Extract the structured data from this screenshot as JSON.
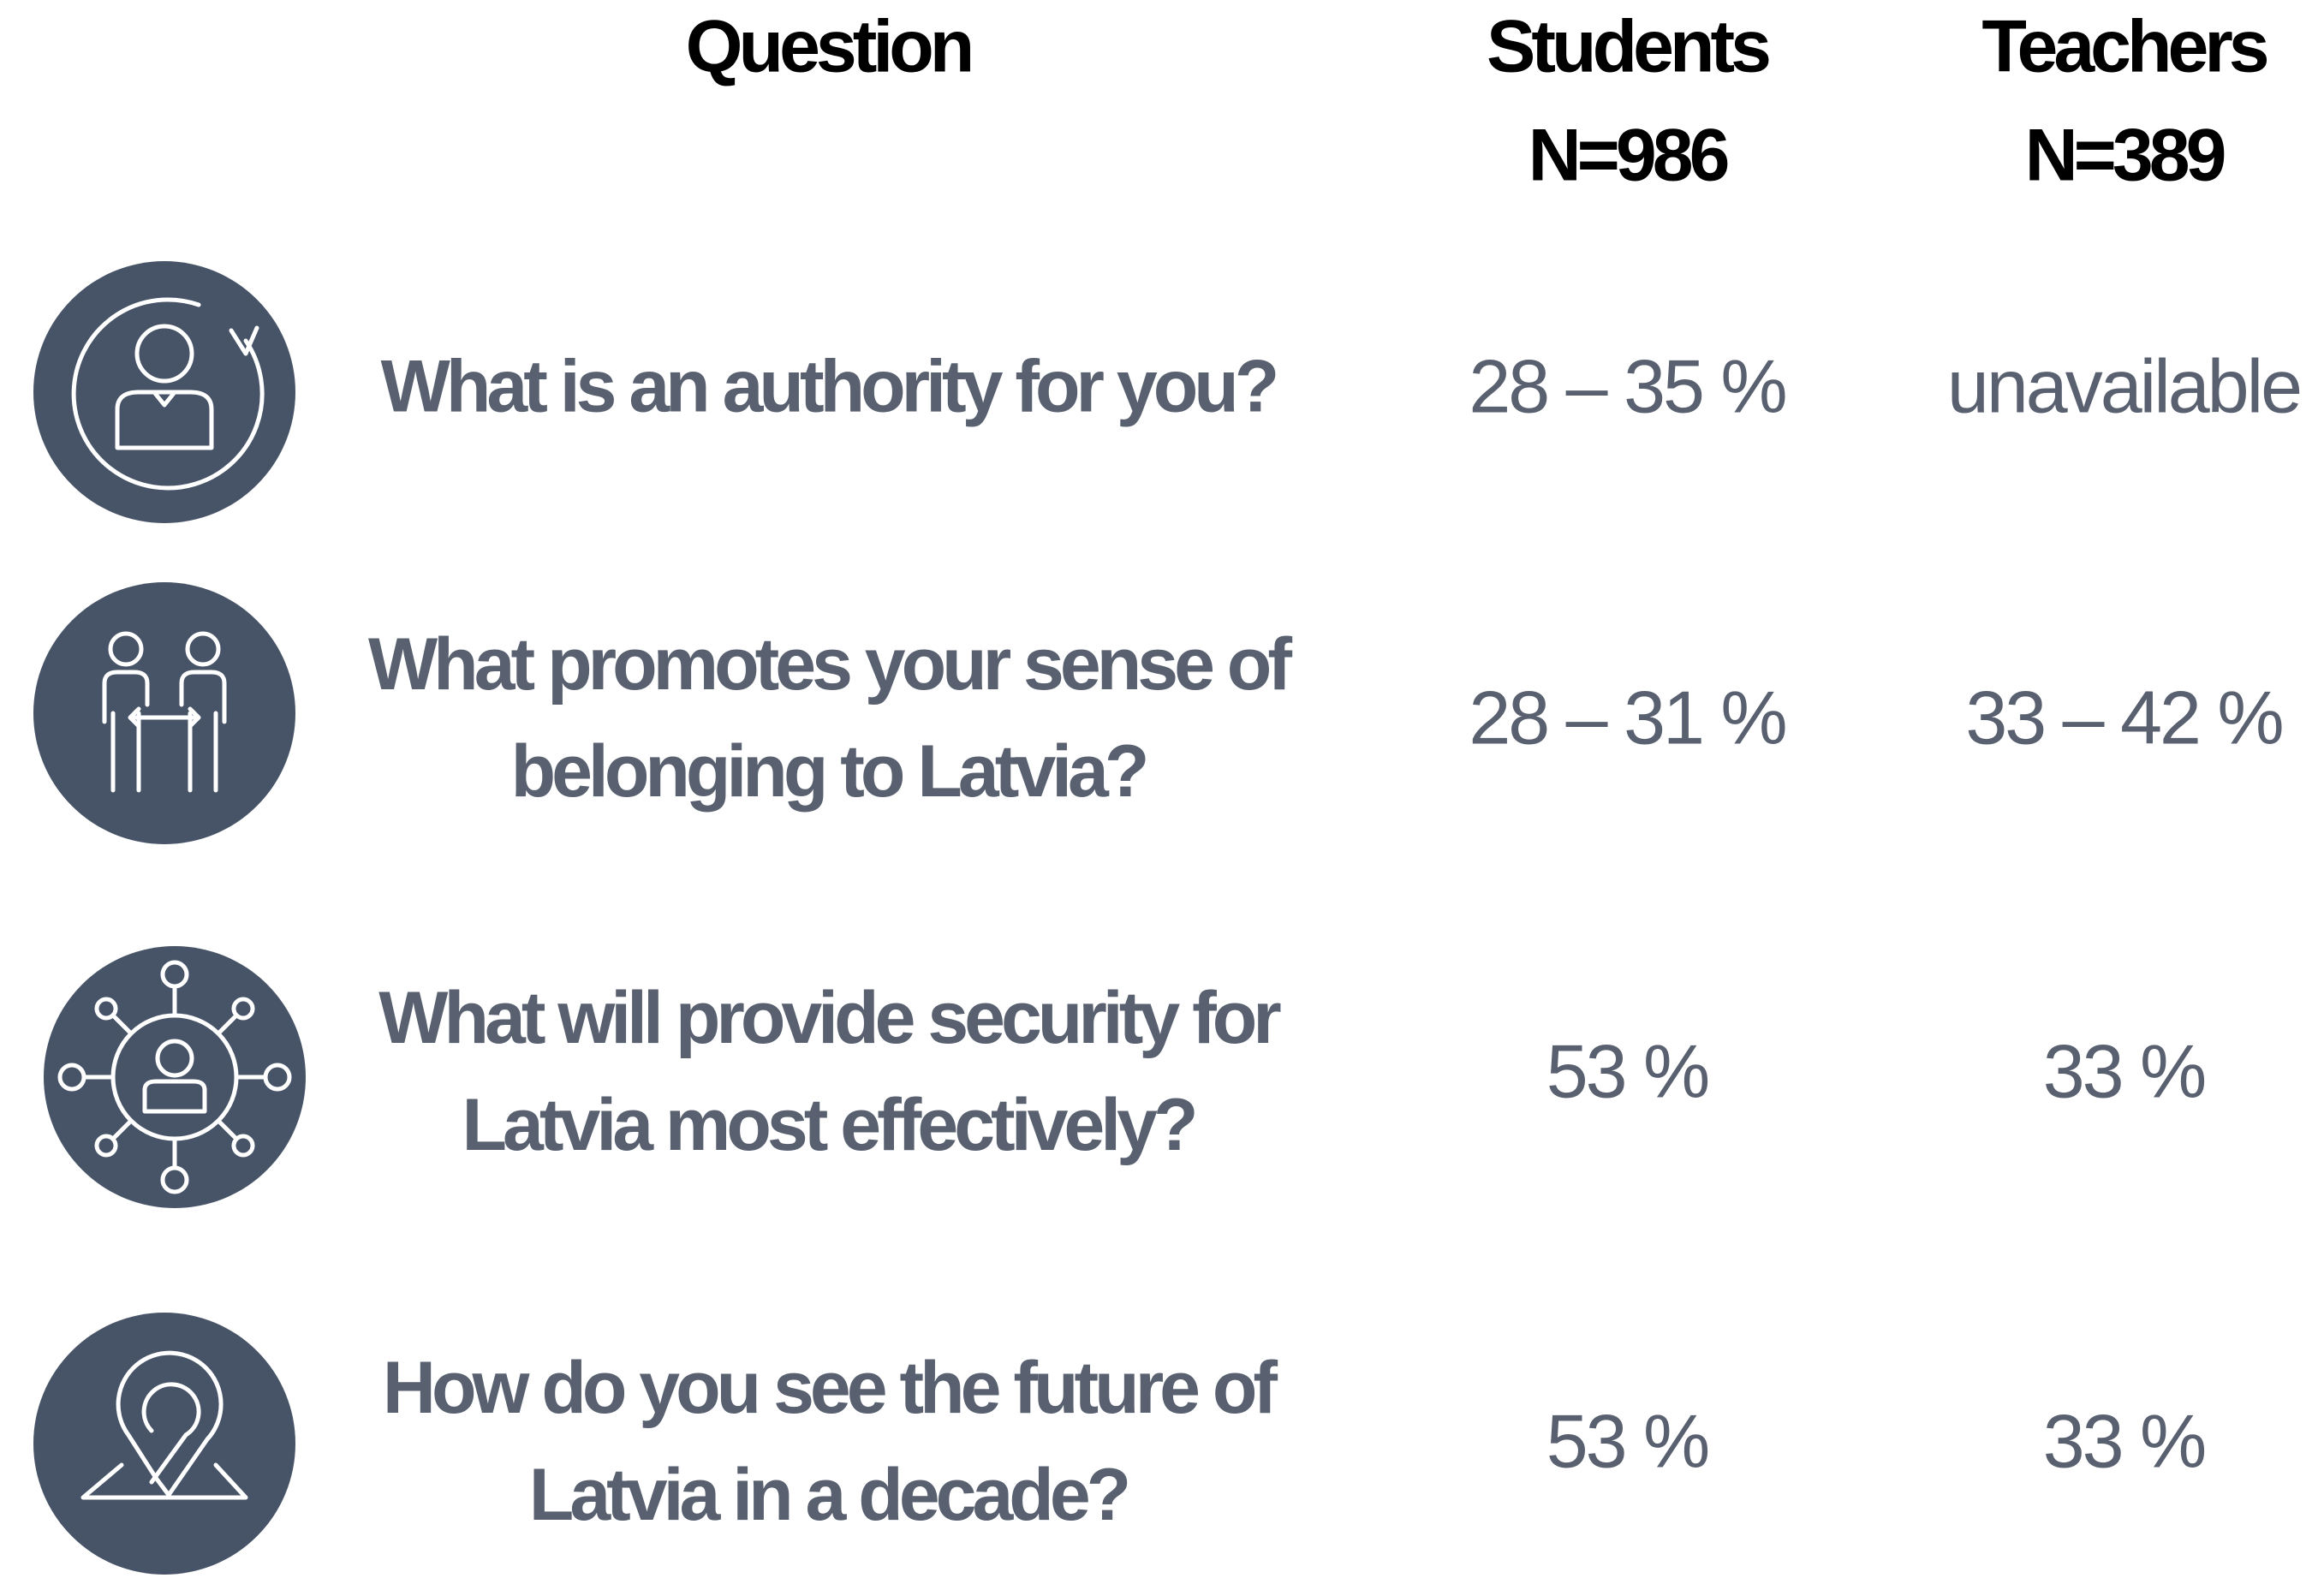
{
  "header": {
    "question": "Question",
    "students": [
      "Students",
      "N=986"
    ],
    "teachers": [
      "Teachers",
      "N=389"
    ]
  },
  "rows": [
    {
      "question": [
        "What is an authority for you?"
      ],
      "students": "28 – 35 %",
      "teachers": "unavailable"
    },
    {
      "question": [
        "What promotes your sense of",
        "belonging to Latvia?"
      ],
      "students": "28 – 31 %",
      "teachers": "33 – 42 %"
    },
    {
      "question": [
        "What will provide security for",
        "Latvia most effectively?"
      ],
      "students": "53 %",
      "teachers": "33 %"
    },
    {
      "question": [
        "How do you see the future of",
        "Latvia in a decade?"
      ],
      "students": "53 %",
      "teachers": "33 %"
    }
  ]
}
